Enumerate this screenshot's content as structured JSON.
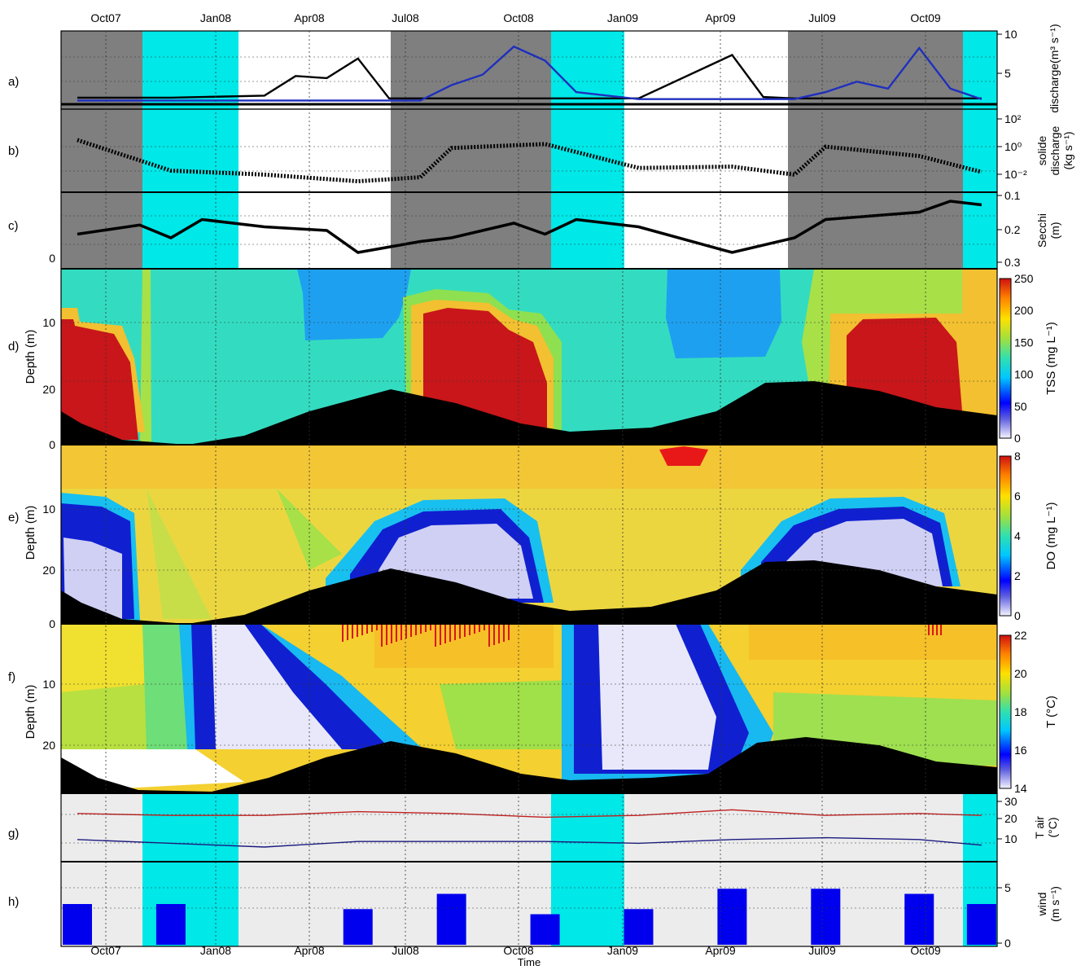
{
  "figure": {
    "xlabel": "Time",
    "top_ticks": [
      "Oct07",
      "Jan08",
      "Apr08",
      "Jul08",
      "Oct08",
      "Jan09",
      "Apr09",
      "Jul09",
      "Oct09"
    ],
    "bottom_ticks": [
      "Oct07",
      "Jan08",
      "Apr08",
      "Jul08",
      "Oct08",
      "Jan09",
      "Apr09",
      "Jul09",
      "Oct09"
    ],
    "panel_letters": [
      "a)",
      "b)",
      "c)",
      "d)",
      "e)",
      "f)",
      "g)",
      "h)"
    ],
    "season_colors": {
      "dry": "#7f7f7f",
      "flood": "#ffffff",
      "transition": "#00e8e8",
      "light": "#ececec"
    }
  },
  "chart_data": [
    {
      "panel": "a)",
      "type": "line",
      "ylabel_lines": [
        "discharge(m³ s⁻¹)"
      ],
      "yticks": [
        "10",
        "5"
      ],
      "ylim": [
        0,
        10
      ],
      "series": [
        {
          "color": "#000000",
          "x": [
            "Jul07",
            "Oct07",
            "Jan08",
            "Feb08",
            "Mar08",
            "Apr08",
            "May08",
            "Jun08",
            "Jul08",
            "Oct08",
            "Jan09",
            "Apr09",
            "May09",
            "Jun09",
            "Jul09",
            "Oct09",
            "Dec09"
          ],
          "values": [
            0.7,
            0.7,
            1.0,
            3.8,
            3.5,
            6.3,
            0.6,
            0.6,
            0.6,
            0.6,
            0.6,
            6.8,
            0.8,
            0.6,
            0.6,
            0.6,
            0.6
          ]
        },
        {
          "color": "#1f2fbf",
          "x": [
            "Jul07",
            "Jan08",
            "Jun08",
            "Jul08",
            "Aug08",
            "Sep08",
            "Oct08",
            "Nov08",
            "Jan09",
            "Jun09",
            "Jul09",
            "Aug09",
            "Sep09",
            "Oct09",
            "Nov09",
            "Dec09"
          ],
          "values": [
            0.3,
            0.3,
            0.3,
            2.5,
            4.0,
            8.0,
            6.0,
            1.5,
            0.5,
            0.5,
            1.5,
            3.0,
            2.0,
            7.8,
            2.0,
            0.5
          ]
        }
      ]
    },
    {
      "panel": "b)",
      "type": "scatter",
      "ylabel_lines": [
        "solide",
        "discharge",
        "(kg s⁻¹)"
      ],
      "yticks": [
        "10²",
        "10⁰",
        "10⁻²"
      ],
      "ylim": [
        -3,
        3
      ],
      "series": [
        {
          "color": "#000000",
          "x": [
            "Jul07",
            "Oct07",
            "Jan08",
            "Apr08",
            "Jun08",
            "Jul08",
            "Oct08",
            "Jan09",
            "Apr09",
            "Jun09",
            "Jul09",
            "Oct09",
            "Dec09"
          ],
          "values": [
            0.8,
            -1.5,
            -1.8,
            -2.3,
            -2.0,
            0.2,
            0.5,
            -1.3,
            -1.2,
            -1.8,
            0.3,
            -0.4,
            -1.6
          ]
        }
      ]
    },
    {
      "panel": "c)",
      "type": "line",
      "ylabel_lines": [
        "Secchi",
        "(m)"
      ],
      "yticks": [
        "0.1",
        "0.2",
        "0.3"
      ],
      "left_tick": "0",
      "ylim": [
        0.3,
        0.1
      ],
      "series": [
        {
          "color": "#000000",
          "x": [
            "Jul07",
            "Sep07",
            "Oct07",
            "Nov07",
            "Jan08",
            "Mar08",
            "Apr08",
            "Jun08",
            "Jul08",
            "Sep08",
            "Oct08",
            "Nov08",
            "Jan09",
            "Apr09",
            "Jun09",
            "Jul09",
            "Oct09",
            "Nov09",
            "Dec09"
          ],
          "values": [
            0.21,
            0.185,
            0.22,
            0.17,
            0.19,
            0.2,
            0.26,
            0.23,
            0.22,
            0.18,
            0.21,
            0.17,
            0.19,
            0.26,
            0.22,
            0.17,
            0.15,
            0.12,
            0.13
          ]
        }
      ]
    },
    {
      "panel": "d)",
      "type": "heatmap",
      "ylabel": "Depth (m)",
      "yticks": [
        "10",
        "20",
        "0"
      ],
      "colorbar_label": "TSS (mg L⁻¹)",
      "colorbar_ticks": [
        "250",
        "200",
        "150",
        "100",
        "50",
        "0"
      ],
      "high_zones": [
        "Jul07–Nov07",
        "Jul08–Oct08",
        "Aug09–Nov09"
      ],
      "low_zones": [
        "Mar08–Jun08",
        "Feb09–May09"
      ]
    },
    {
      "panel": "e)",
      "type": "heatmap",
      "ylabel": "Depth (m)",
      "yticks": [
        "10",
        "20",
        "0"
      ],
      "colorbar_label": "DO (mg L⁻¹)",
      "colorbar_ticks": [
        "8",
        "6",
        "4",
        "2",
        "0"
      ]
    },
    {
      "panel": "f)",
      "type": "heatmap",
      "ylabel": "Depth (m)",
      "yticks": [
        "10",
        "20"
      ],
      "colorbar_label": "T (°C)",
      "colorbar_ticks": [
        "22",
        "20",
        "18",
        "16",
        "14"
      ]
    },
    {
      "panel": "g)",
      "type": "line",
      "ylabel_lines": [
        "T air",
        "(°C)"
      ],
      "yticks": [
        "30",
        "20",
        "10"
      ],
      "ylim": [
        0,
        35
      ],
      "series": [
        {
          "color": "#c02020",
          "x": [
            "Jul07",
            "Oct07",
            "Jan08",
            "Apr08",
            "Jul08",
            "Oct08",
            "Jan09",
            "Apr09",
            "Jul09",
            "Oct09",
            "Dec09"
          ],
          "values": [
            25,
            24,
            24,
            26,
            25,
            23,
            24,
            27,
            24,
            25,
            24
          ]
        },
        {
          "color": "#1a1a80",
          "x": [
            "Jul07",
            "Oct07",
            "Jan08",
            "Apr08",
            "Jul08",
            "Oct08",
            "Jan09",
            "Apr09",
            "Jul09",
            "Oct09",
            "Dec09"
          ],
          "values": [
            11,
            9,
            7,
            10,
            10,
            10,
            9,
            11,
            12,
            11,
            8
          ]
        }
      ]
    },
    {
      "panel": "h)",
      "type": "bar",
      "ylabel_lines": [
        "wind",
        "(m s⁻¹)"
      ],
      "yticks": [
        "5",
        "0"
      ],
      "ylim": [
        0,
        8
      ],
      "series": [
        {
          "color": "#0000ee",
          "x": [
            "Jul07",
            "Oct07",
            "Jan08",
            "Apr08",
            "Jul08",
            "Oct08",
            "Jan09",
            "Apr09",
            "Jul09",
            "Oct09",
            "Dec09"
          ],
          "values": [
            4,
            4,
            0,
            3.5,
            5,
            3,
            3.5,
            5.5,
            5.5,
            5,
            4
          ]
        }
      ]
    }
  ]
}
